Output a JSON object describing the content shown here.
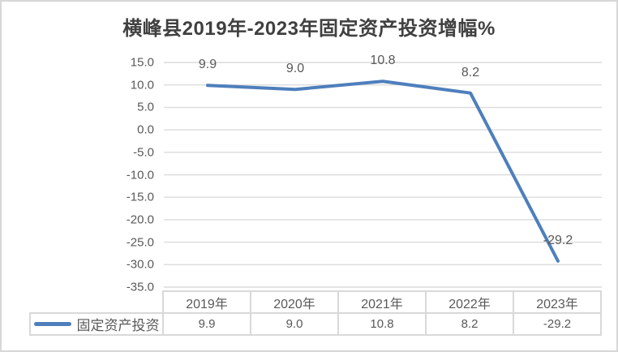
{
  "chart": {
    "title": "横峰县2019年-2023年固定资产投资增幅%"
  },
  "chart_data": {
    "type": "line",
    "title": "横峰县2019年-2023年固定资产投资增幅%",
    "categories": [
      "2019年",
      "2020年",
      "2021年",
      "2022年",
      "2023年"
    ],
    "series": [
      {
        "name": "固定资产投资",
        "values": [
          9.9,
          9.0,
          10.8,
          8.2,
          -29.2
        ],
        "color": "#4e7fbc"
      }
    ],
    "data_labels": [
      "9.9",
      "9.0",
      "10.8",
      "8.2",
      "-29.2"
    ],
    "xlabel": "",
    "ylabel": "",
    "ylim": [
      -35,
      15
    ],
    "ytick_values": [
      15,
      10,
      5,
      0,
      -5,
      -10,
      -15,
      -20,
      -25,
      -30,
      -35
    ],
    "ytick_labels": [
      "15.0",
      "10.0",
      "5.0",
      "0.0",
      "-5.0",
      "-10.0",
      "-15.0",
      "-20.0",
      "-25.0",
      "-30.0",
      "-35.0"
    ],
    "grid": "horizontal",
    "legend_position": "bottom-table-left",
    "markers": "none"
  },
  "colors": {
    "line": "#4e7fbc",
    "grid": "#dcdcdc",
    "axis_text": "#595959",
    "title_text": "#404040",
    "table_border": "#d9d9d9",
    "outer_border": "#d7d7d7"
  }
}
